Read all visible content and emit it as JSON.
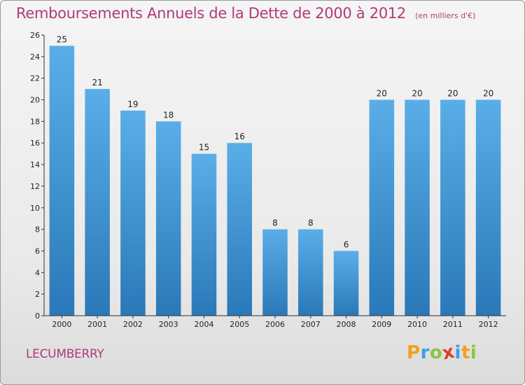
{
  "header": {
    "title": "Remboursements Annuels de la Dette de 2000 à 2012",
    "subtitle": "(en milliers d'€)"
  },
  "commune": "LECUMBERRY",
  "brand": {
    "letters": [
      "P",
      "r",
      "o",
      "x",
      "i",
      "t",
      "i"
    ],
    "colors": [
      "#f0a020",
      "#3aa0e0",
      "#8cc63f",
      "#e0402a",
      "#3aa0e0",
      "#f0a020",
      "#8cc63f"
    ]
  },
  "chart_data": {
    "type": "bar",
    "categories": [
      "2000",
      "2001",
      "2002",
      "2003",
      "2004",
      "2005",
      "2006",
      "2007",
      "2008",
      "2009",
      "2010",
      "2011",
      "2012"
    ],
    "values": [
      25,
      21,
      19,
      18,
      15,
      16,
      8,
      8,
      6,
      20,
      20,
      20,
      20
    ],
    "data_labels": [
      "25",
      "21",
      "19",
      "18",
      "15",
      "16",
      "8",
      "8",
      "6",
      "20",
      "20",
      "20",
      "20"
    ],
    "y_ticks": [
      "0",
      "2",
      "4",
      "6",
      "8",
      "10",
      "12",
      "14",
      "16",
      "18",
      "20",
      "22",
      "24",
      "26"
    ],
    "title": "Remboursements Annuels de la Dette de 2000 à 2012",
    "ylim": [
      0,
      26
    ],
    "grid": false,
    "bar_color_top": "#5aaee8",
    "bar_color_bottom": "#2a78b8"
  }
}
